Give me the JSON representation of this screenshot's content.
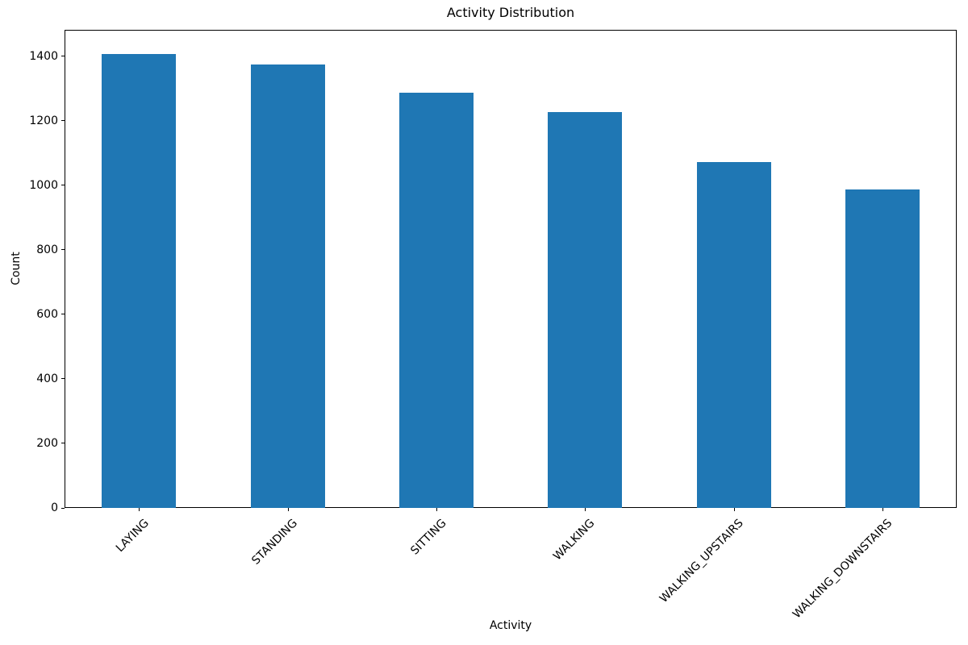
{
  "figure": {
    "background": "#ffffff"
  },
  "chart_data": {
    "type": "bar",
    "title": "Activity Distribution",
    "xlabel": "Activity",
    "ylabel": "Count",
    "categories": [
      "LAYING",
      "STANDING",
      "SITTING",
      "WALKING",
      "WALKING_UPSTAIRS",
      "WALKING_DOWNSTAIRS"
    ],
    "values": [
      1407,
      1374,
      1286,
      1226,
      1073,
      986
    ],
    "y_ticks": [
      0,
      200,
      400,
      600,
      800,
      1000,
      1200,
      1400
    ],
    "ylim": [
      0,
      1482
    ],
    "x_tick_rotation_deg": 45,
    "bar_color": "#1f77b4",
    "axis_color": "#000000",
    "text_color": "#000000",
    "grid": false
  }
}
